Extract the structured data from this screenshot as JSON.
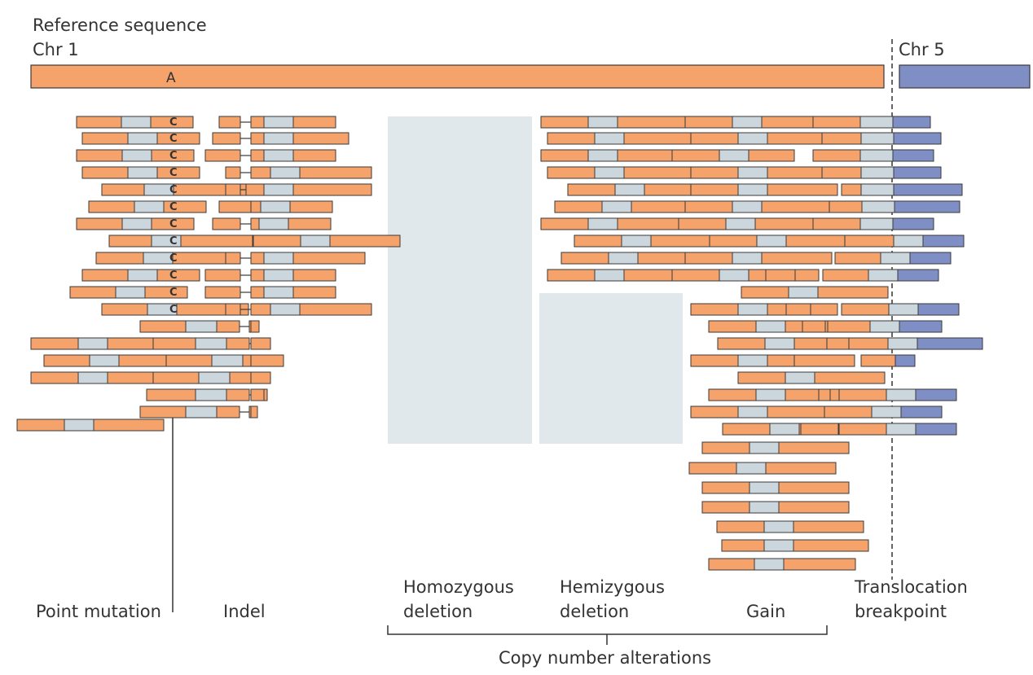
{
  "header": {
    "title": "Reference sequence",
    "chr1_label": "Chr 1",
    "chr5_label": "Chr 5",
    "reference_base": "A"
  },
  "read_base": "C",
  "categories": {
    "point_mutation": "Point mutation",
    "indel": "Indel",
    "homozygous_line1": "Homozygous",
    "homozygous_line2": "deletion",
    "hemizygous_line1": "Hemizygous",
    "hemizygous_line2": "deletion",
    "gain": "Gain",
    "translocation_line1": "Translocation",
    "translocation_line2": "breakpoint",
    "copy_number": "Copy number alterations"
  },
  "colors": {
    "chr1": "#F5A26B",
    "chr5": "#7F8EC5",
    "insert": "#CCD6DD",
    "outline": "#3a3a3a",
    "deletion_shade": "#E1E8EB",
    "text": "#333333"
  }
}
